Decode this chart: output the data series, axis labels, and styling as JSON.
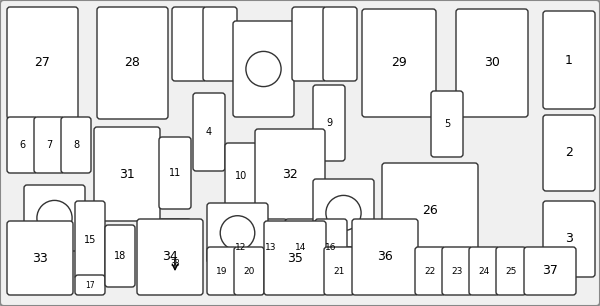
{
  "bg_color": "#f0f0f0",
  "border_color": "#333333",
  "fill_color": "#ffffff",
  "fig_w": 6.0,
  "fig_h": 3.06,
  "dpi": 100
}
